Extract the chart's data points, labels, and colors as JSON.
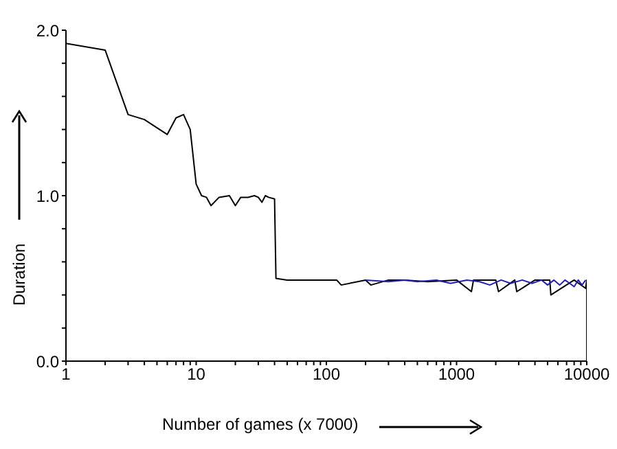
{
  "chart_data": {
    "type": "line",
    "xlabel": "Number of games (x 7000)",
    "ylabel": "Duration",
    "log": "x",
    "marker": "none",
    "line_style": "solid",
    "xlim": [
      1,
      10000
    ],
    "ylim": [
      0,
      2.0
    ],
    "xticks": [
      1,
      {
        "value": 2,
        "label": null
      },
      {
        "value": 3,
        "label": null
      },
      {
        "value": 4,
        "label": null
      },
      {
        "value": 5,
        "label": null
      },
      {
        "value": 6,
        "label": null
      },
      {
        "value": 7,
        "label": null
      },
      {
        "value": 8,
        "label": null
      },
      {
        "value": 9,
        "label": null
      },
      10,
      {
        "value": 20,
        "label": null
      },
      {
        "value": 30,
        "label": null
      },
      {
        "value": 40,
        "label": null
      },
      {
        "value": 50,
        "label": null
      },
      {
        "value": 60,
        "label": null
      },
      {
        "value": 70,
        "label": null
      },
      {
        "value": 80,
        "label": null
      },
      {
        "value": 90,
        "label": null
      },
      100,
      {
        "value": 200,
        "label": null
      },
      {
        "value": 300,
        "label": null
      },
      {
        "value": 400,
        "label": null
      },
      {
        "value": 500,
        "label": null
      },
      {
        "value": 600,
        "label": null
      },
      {
        "value": 700,
        "label": null
      },
      {
        "value": 800,
        "label": null
      },
      {
        "value": 900,
        "label": null
      },
      1000,
      {
        "value": 2000,
        "label": null
      },
      {
        "value": 3000,
        "label": null
      },
      {
        "value": 4000,
        "label": null
      },
      {
        "value": 5000,
        "label": null
      },
      {
        "value": 6000,
        "label": null
      },
      {
        "value": 7000,
        "label": null
      },
      {
        "value": 8000,
        "label": null
      },
      {
        "value": 9000,
        "label": null
      },
      10000
    ],
    "yticks": [
      {
        "value": 0,
        "label": "0.0"
      },
      {
        "value": 0.2,
        "label": null
      },
      {
        "value": 0.4,
        "label": null
      },
      {
        "value": 0.6,
        "label": null
      },
      {
        "value": 0.8,
        "label": null
      },
      {
        "value": 1,
        "label": "1.0"
      },
      {
        "value": 1.2,
        "label": null
      },
      {
        "value": 1.4,
        "label": null
      },
      {
        "value": 1.6,
        "label": null
      },
      {
        "value": 1.8,
        "label": null
      },
      {
        "value": 2,
        "label": "2.0"
      }
    ],
    "series": [
      {
        "color": "#000000",
        "x": [
          1,
          2,
          3,
          4,
          5,
          6,
          7,
          8,
          9,
          10,
          11,
          12,
          13,
          15,
          18,
          20,
          22,
          25,
          28,
          30,
          32,
          34,
          36,
          40,
          41,
          50,
          60,
          80,
          120,
          130,
          200,
          220,
          300,
          400,
          600,
          1000,
          1300,
          1350,
          2000,
          2100,
          2800,
          2900,
          4000,
          5200,
          5300,
          8000,
          9800,
          10000,
          10000
        ],
        "values": [
          1.92,
          1.88,
          1.49,
          1.46,
          1.41,
          1.37,
          1.47,
          1.49,
          1.4,
          1.07,
          1.0,
          0.99,
          0.94,
          0.99,
          1.0,
          0.94,
          0.99,
          0.99,
          1.0,
          0.99,
          0.96,
          1.0,
          0.99,
          0.98,
          0.5,
          0.49,
          0.49,
          0.49,
          0.49,
          0.46,
          0.49,
          0.46,
          0.49,
          0.49,
          0.48,
          0.49,
          0.42,
          0.49,
          0.49,
          0.42,
          0.49,
          0.42,
          0.49,
          0.49,
          0.4,
          0.49,
          0.44,
          0.49,
          0.0
        ]
      },
      {
        "color": "#1f1fb0",
        "x": [
          200,
          300,
          400,
          500,
          700,
          900,
          1200,
          1500,
          1800,
          2200,
          2600,
          3200,
          3800,
          4500,
          5000,
          5600,
          6200,
          6800,
          7400,
          8000,
          8600,
          9200,
          9800
        ],
        "values": [
          0.49,
          0.48,
          0.49,
          0.48,
          0.49,
          0.47,
          0.49,
          0.48,
          0.46,
          0.49,
          0.47,
          0.49,
          0.47,
          0.49,
          0.46,
          0.49,
          0.46,
          0.49,
          0.47,
          0.45,
          0.49,
          0.46,
          0.49
        ]
      }
    ]
  }
}
